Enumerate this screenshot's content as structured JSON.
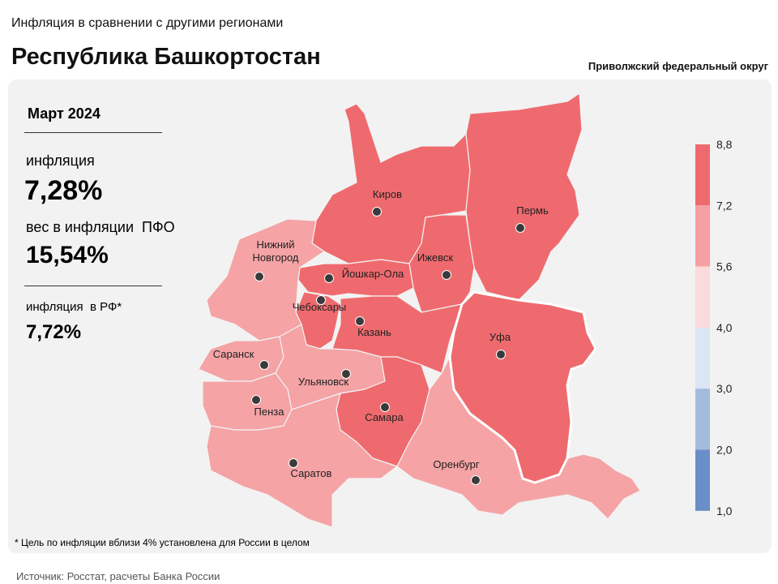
{
  "header": {
    "subtitle": "Инфляция в сравнении с другими регионами",
    "title": "Республика Башкортостан",
    "district": "Приволжский федеральный округ"
  },
  "panel": {
    "period": "Март 2024",
    "inflation_label": "инфляция",
    "inflation_value": "7,28%",
    "weight_label": "вес в инфляции  ПФО",
    "weight_value": "15,54%",
    "rf_label": "инфляция  в РФ*",
    "rf_value": "7,72%"
  },
  "map": {
    "regions": [
      {
        "name": "Киров",
        "color": "#ef6a6e"
      },
      {
        "name": "Пермь",
        "color": "#ef6a6e"
      },
      {
        "name": "Ижевск",
        "color": "#ef6a6e"
      },
      {
        "name": "Йошкар-Ола",
        "color": "#ef6a6e"
      },
      {
        "name": "Чебоксары",
        "color": "#ef6a6e"
      },
      {
        "name": "Казань",
        "color": "#ef6a6e"
      },
      {
        "name": "Уфа",
        "color": "#ef6a6e"
      },
      {
        "name": "Нижний Новгород",
        "color": "#f5a3a5"
      },
      {
        "name": "Саранск",
        "color": "#f5a3a5"
      },
      {
        "name": "Пенза",
        "color": "#f5a3a5"
      },
      {
        "name": "Ульяновск",
        "color": "#f5a3a5"
      },
      {
        "name": "Самара",
        "color": "#ef6a6e"
      },
      {
        "name": "Саратов",
        "color": "#f5a3a5"
      },
      {
        "name": "Оренбург",
        "color": "#f5a3a5"
      }
    ],
    "legend": {
      "ticks": [
        "8,8",
        "7,2",
        "5,6",
        "4,0",
        "3,0",
        "2,0",
        "1,0"
      ],
      "colors": [
        "#ef6a6e",
        "#f5a0a2",
        "#fadadb",
        "#dce5f4",
        "#a3bbdd",
        "#6a8ec8"
      ]
    }
  },
  "footnote": "* Цель по инфляции вблизи 4% установлена для России в целом",
  "source": "Источник: Росстат, расчеты Банка России"
}
